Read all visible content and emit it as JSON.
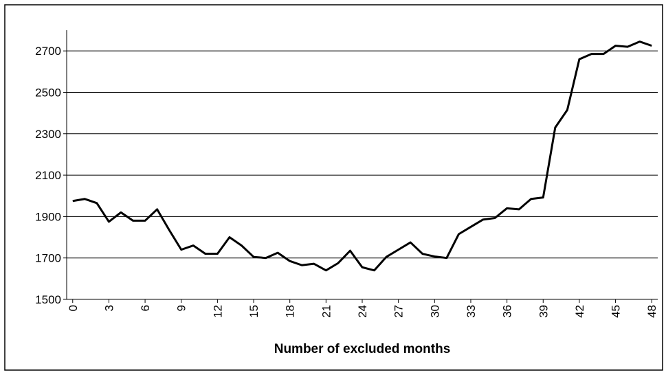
{
  "chart_data": {
    "type": "line",
    "x_label": "Number of excluded months",
    "x": [
      0,
      1,
      2,
      3,
      4,
      5,
      6,
      7,
      8,
      9,
      10,
      11,
      12,
      13,
      14,
      15,
      16,
      17,
      18,
      19,
      20,
      21,
      22,
      23,
      24,
      25,
      26,
      27,
      28,
      29,
      30,
      31,
      32,
      33,
      34,
      35,
      36,
      37,
      38,
      39,
      40,
      41,
      42,
      43,
      44,
      45,
      46,
      47,
      48
    ],
    "series": [
      {
        "color": "#000000",
        "values": [
          1975,
          1985,
          1965,
          1875,
          1920,
          1880,
          1880,
          1935,
          1835,
          1740,
          1760,
          1720,
          1720,
          1800,
          1760,
          1705,
          1700,
          1725,
          1685,
          1665,
          1672,
          1640,
          1675,
          1735,
          1655,
          1640,
          1705,
          1740,
          1775,
          1720,
          1707,
          1700,
          1815,
          1850,
          1885,
          1893,
          1940,
          1935,
          1985,
          1992,
          2330,
          2415,
          2660,
          2685,
          2685,
          2725,
          2720,
          2745,
          2725
        ]
      }
    ],
    "xlim": [
      -0.5,
      48.5
    ],
    "xticks": [
      0,
      3,
      6,
      9,
      12,
      15,
      18,
      21,
      24,
      27,
      30,
      33,
      36,
      39,
      42,
      45,
      48
    ],
    "ylim": [
      1500,
      2800
    ],
    "yticks": [
      1500,
      1700,
      1900,
      2100,
      2300,
      2500,
      2700
    ],
    "grid": true
  }
}
